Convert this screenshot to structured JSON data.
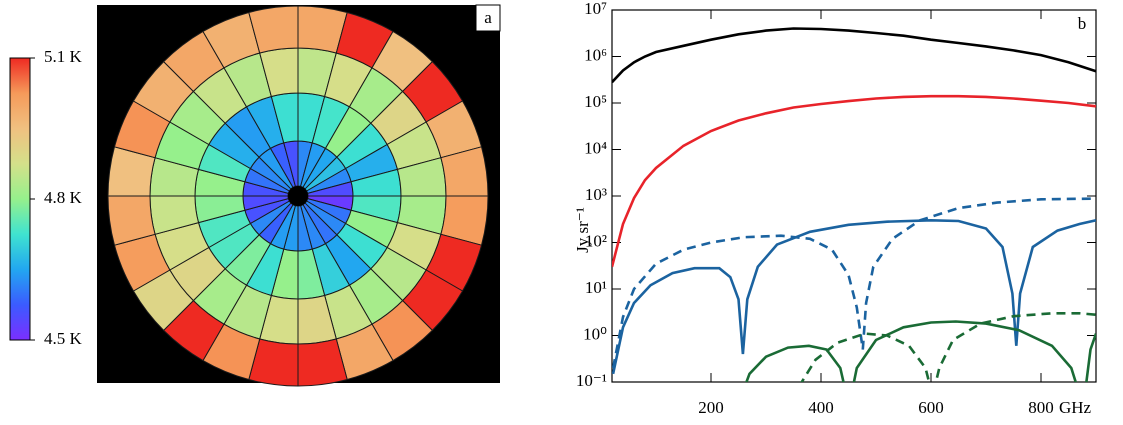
{
  "chart_data": [
    {
      "type": "polar",
      "label": "a",
      "clim": [
        4.5,
        5.1
      ],
      "cticks": [
        {
          "value": 5.1,
          "label": "5.1 K"
        },
        {
          "value": 4.8,
          "label": "4.8 K"
        },
        {
          "value": 4.5,
          "label": "4.5 K"
        }
      ],
      "colormap": [
        "#7b2fff",
        "#3b5bff",
        "#22a7f0",
        "#3fe3d0",
        "#96f08c",
        "#d4e08a",
        "#f0c080",
        "#f59a5a",
        "#ee2a22"
      ],
      "cells": [
        [
          4.62,
          4.64,
          4.65,
          4.68,
          4.62,
          4.55,
          4.52,
          4.6,
          4.62,
          4.6,
          4.62,
          4.62,
          4.64,
          4.64,
          4.58,
          4.62,
          4.56,
          4.55,
          4.56,
          4.6,
          4.62,
          4.64,
          4.58,
          4.56
        ],
        [
          4.72,
          4.73,
          4.8,
          4.72,
          4.66,
          4.72,
          4.74,
          4.8,
          4.72,
          4.65,
          4.7,
          4.78,
          4.8,
          4.72,
          4.78,
          4.74,
          4.74,
          4.79,
          4.8,
          4.74,
          4.66,
          4.64,
          4.66,
          4.72
        ],
        [
          4.85,
          4.88,
          4.82,
          4.9,
          4.86,
          4.84,
          4.82,
          4.88,
          4.84,
          4.82,
          4.86,
          4.9,
          4.88,
          4.84,
          4.82,
          4.9,
          4.88,
          4.86,
          4.84,
          4.8,
          4.82,
          4.86,
          4.84,
          4.88
        ],
        [
          5.0,
          5.1,
          4.95,
          5.1,
          4.98,
          5.0,
          5.02,
          5.1,
          5.1,
          5.03,
          5.0,
          5.1,
          5.1,
          5.03,
          5.1,
          4.9,
          5.02,
          5.0,
          4.95,
          5.03,
          4.98,
          5.0,
          4.98,
          5.0
        ]
      ]
    },
    {
      "type": "line",
      "label": "b",
      "xlabel": "GHz",
      "ylabel": "Jy sr⁻¹",
      "log_y": true,
      "xlim": [
        20,
        900
      ],
      "ylim": [
        0.1,
        10000000
      ],
      "xticks": [
        200,
        400,
        600,
        800
      ],
      "yticks": [
        {
          "value": 10000000,
          "label": "10⁷"
        },
        {
          "value": 1000000,
          "label": "10⁶"
        },
        {
          "value": 100000,
          "label": "10⁵"
        },
        {
          "value": 10000,
          "label": "10⁴"
        },
        {
          "value": 1000,
          "label": "10³"
        },
        {
          "value": 100,
          "label": "10²"
        },
        {
          "value": 10,
          "label": "10¹"
        },
        {
          "value": 1,
          "label": "10⁰"
        },
        {
          "value": 0.1,
          "label": "10⁻¹"
        }
      ],
      "series": [
        {
          "color": "#000000",
          "dash": false,
          "x": [
            20,
            40,
            60,
            80,
            100,
            150,
            200,
            250,
            300,
            350,
            400,
            450,
            500,
            550,
            600,
            650,
            700,
            750,
            800,
            850,
            900
          ],
          "values": [
            280000,
            500000,
            750000,
            1000000,
            1250000,
            1700000,
            2300000,
            3000000,
            3600000,
            4000000,
            3900000,
            3600000,
            3200000,
            2800000,
            2300000,
            1950000,
            1650000,
            1350000,
            1070000,
            750000,
            480000
          ]
        },
        {
          "color": "#e8232a",
          "dash": false,
          "x": [
            20,
            40,
            60,
            80,
            100,
            150,
            200,
            250,
            300,
            350,
            400,
            450,
            500,
            550,
            600,
            650,
            700,
            750,
            800,
            850,
            900
          ],
          "values": [
            30,
            250,
            900,
            2200,
            4000,
            12000,
            25000,
            42000,
            60000,
            80000,
            95000,
            110000,
            125000,
            135000,
            140000,
            140000,
            135000,
            125000,
            112000,
            100000,
            85000
          ]
        },
        {
          "color": "#1b63a0",
          "dash": false,
          "x": [
            22,
            40,
            60,
            90,
            130,
            170,
            215,
            235,
            250,
            258,
            266,
            285,
            320,
            380,
            450,
            520,
            600,
            650,
            700,
            730,
            748,
            755,
            762,
            785,
            830,
            870,
            900
          ],
          "values": [
            0.15,
            1.5,
            5,
            12,
            22,
            28,
            28,
            18,
            6,
            0.4,
            6,
            30,
            90,
            170,
            240,
            280,
            300,
            290,
            200,
            80,
            8,
            0.6,
            8,
            80,
            180,
            250,
            300
          ]
        },
        {
          "color": "#1b63a0",
          "dash": true,
          "x": [
            22,
            40,
            60,
            100,
            150,
            200,
            260,
            327,
            380,
            420,
            450,
            465,
            476,
            482,
            495,
            530,
            580,
            650,
            720,
            800,
            900
          ],
          "values": [
            0.2,
            2.5,
            10,
            35,
            70,
            100,
            130,
            140,
            120,
            70,
            20,
            4,
            0.5,
            5,
            30,
            120,
            300,
            550,
            720,
            850,
            880
          ]
        },
        {
          "color": "#1a6b35",
          "dash": false,
          "x": [
            255,
            270,
            300,
            340,
            378,
            410,
            435,
            451,
            465,
            500,
            550,
            600,
            645,
            700,
            760,
            820,
            855,
            877,
            890,
            900
          ],
          "values": [
            0.05,
            0.15,
            0.35,
            0.55,
            0.6,
            0.5,
            0.2,
            0.03,
            0.2,
            0.8,
            1.5,
            1.9,
            2,
            1.8,
            1.3,
            0.6,
            0.2,
            0.03,
            0.5,
            1.1
          ]
        },
        {
          "color": "#1a6b35",
          "dash": true,
          "x": [
            360,
            390,
            430,
            480,
            520,
            560,
            590,
            603,
            615,
            640,
            690,
            750,
            820,
            870,
            900
          ],
          "values": [
            0.08,
            0.3,
            0.7,
            1.1,
            1.0,
            0.6,
            0.2,
            0.05,
            0.2,
            0.8,
            1.8,
            2.6,
            3,
            3,
            2.8
          ]
        }
      ]
    }
  ]
}
